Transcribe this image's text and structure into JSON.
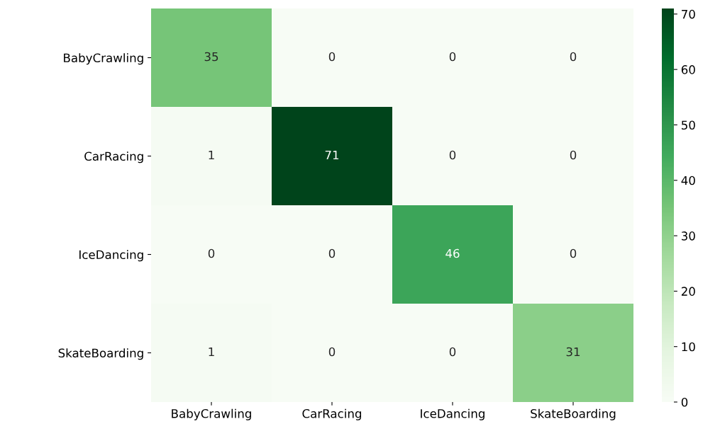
{
  "chart_data": {
    "type": "heatmap",
    "categories": [
      "BabyCrawling",
      "CarRacing",
      "IceDancing",
      "SkateBoarding"
    ],
    "y_categories": [
      "BabyCrawling",
      "CarRacing",
      "IceDancing",
      "SkateBoarding"
    ],
    "cells": [
      [
        35,
        0,
        0,
        0
      ],
      [
        1,
        71,
        0,
        0
      ],
      [
        0,
        0,
        46,
        0
      ],
      [
        1,
        0,
        0,
        31
      ]
    ],
    "clim": [
      0,
      71
    ],
    "cticks": [
      0,
      10,
      20,
      30,
      40,
      50,
      60,
      70
    ],
    "data_labels": true
  }
}
